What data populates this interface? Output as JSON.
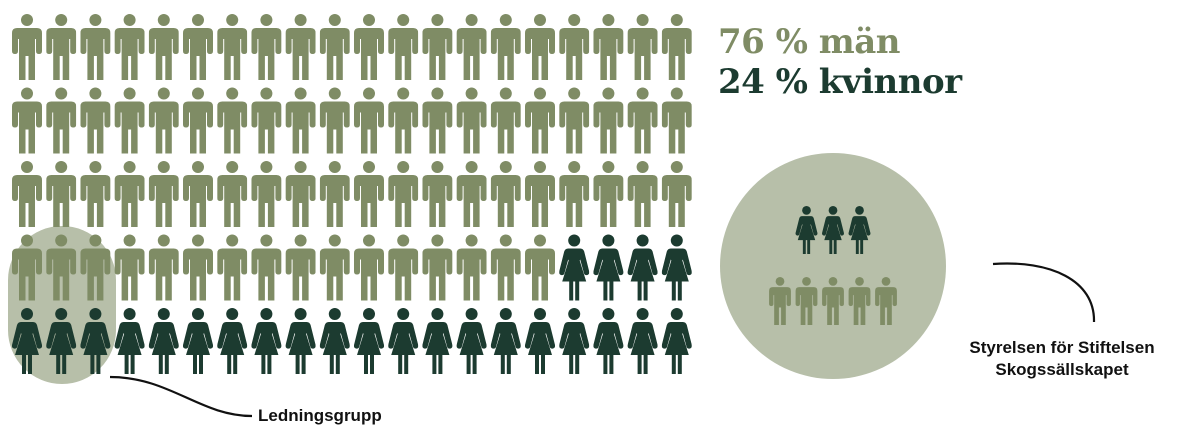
{
  "stats": {
    "men": {
      "text": "76 % män",
      "color": "#7f8c65"
    },
    "women": {
      "text": "24 % kvinnor",
      "color": "#1c3b30"
    }
  },
  "colors": {
    "male": "#7f8c65",
    "female": "#1c3b30",
    "board_circle": "#b7bfa9",
    "management_highlight": "#b7bfa9"
  },
  "people_grid": {
    "rows": [
      [
        "m",
        "m",
        "m",
        "m",
        "m",
        "m",
        "m",
        "m",
        "m",
        "m",
        "m",
        "m",
        "m",
        "m",
        "m",
        "m",
        "m",
        "m",
        "m",
        "m"
      ],
      [
        "m",
        "m",
        "m",
        "m",
        "m",
        "m",
        "m",
        "m",
        "m",
        "m",
        "m",
        "m",
        "m",
        "m",
        "m",
        "m",
        "m",
        "m",
        "m",
        "m"
      ],
      [
        "m",
        "m",
        "m",
        "m",
        "m",
        "m",
        "m",
        "m",
        "m",
        "m",
        "m",
        "m",
        "m",
        "m",
        "m",
        "m",
        "m",
        "m",
        "m",
        "m"
      ],
      [
        "m",
        "m",
        "m",
        "m",
        "m",
        "m",
        "m",
        "m",
        "m",
        "m",
        "m",
        "m",
        "m",
        "m",
        "m",
        "m",
        "f",
        "f",
        "f",
        "f"
      ],
      [
        "f",
        "f",
        "f",
        "f",
        "f",
        "f",
        "f",
        "f",
        "f",
        "f",
        "f",
        "f",
        "f",
        "f",
        "f",
        "f",
        "f",
        "f",
        "f",
        "f"
      ]
    ]
  },
  "management_group": {
    "label": "Ledningsgrupp",
    "members": [
      "m",
      "m",
      "m",
      "f",
      "f",
      "f"
    ]
  },
  "board": {
    "label_line1": "Styrelsen för Stiftelsen",
    "label_line2": "Skogssällskapet",
    "rows": [
      [
        "f",
        "f",
        "f"
      ],
      [
        "m",
        "m",
        "m",
        "m",
        "m"
      ]
    ]
  }
}
